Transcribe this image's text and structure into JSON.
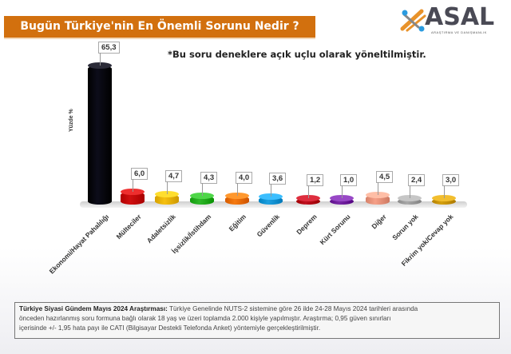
{
  "header": {
    "title": "Bugün Türkiye'nin En Önemli Sorunu Nedir ?",
    "title_bg": "#d2700e",
    "logo": {
      "name": "ASAL",
      "subtitle": "ARAŞTIRMA VE DANIŞMANLIK"
    }
  },
  "note": "*Bu soru deneklere açık uçlu olarak yöneltilmiştir.",
  "chart_data": {
    "type": "bar",
    "title": "Bugün Türkiye'nin En Önemli Sorunu Nedir ?",
    "xlabel": "",
    "ylabel": "Yüzde %",
    "ylim": [
      0,
      70
    ],
    "grid": false,
    "legend": "none",
    "categories": [
      "Ekonomi/Hayat Pahalılığı",
      "Mülteciler",
      "Adaletsizlik",
      "İşsizlik/İstihdam",
      "Eğitim",
      "Güvenlik",
      "Deprem",
      "Kürt Sorunu",
      "Diğer",
      "Sorun yok",
      "Fikrim yok/Cevap yok"
    ],
    "values": [
      65.3,
      6.0,
      4.7,
      4.3,
      4.0,
      3.6,
      1.2,
      1.0,
      4.5,
      2.4,
      3.0
    ],
    "value_labels": [
      "65,3",
      "6,0",
      "4,7",
      "4,3",
      "4,0",
      "3,6",
      "1,2",
      "1,0",
      "4,5",
      "2,4",
      "3,0"
    ],
    "colors": [
      "#0d0d1a",
      "#d01010",
      "#f5c010",
      "#30b82a",
      "#f57a10",
      "#1ea0e0",
      "#c01020",
      "#7a2aa8",
      "#f5a088",
      "#a8a8a8",
      "#d4a010"
    ]
  },
  "footer": {
    "bold": "Türkiye Siyasi Gündem Mayıs 2024 Araştırması:",
    "line1": " Türkiye Genelinde NUTS-2 sistemine göre 26 ilde 24-28 Mayıs 2024 tarihleri arasında",
    "line2": "önceden hazırlanmış soru formuna bağlı olarak 18 yaş ve üzeri toplamda 2.000 kişiyle yapılmıştır. Araştırma; 0,95 güven sınırları",
    "line3": "içerisinde +/- 1,95 hata payı ile CATI (Bilgisayar Destekli Telefonda Anket) yöntemiyle gerçekleştirilmiştir."
  }
}
